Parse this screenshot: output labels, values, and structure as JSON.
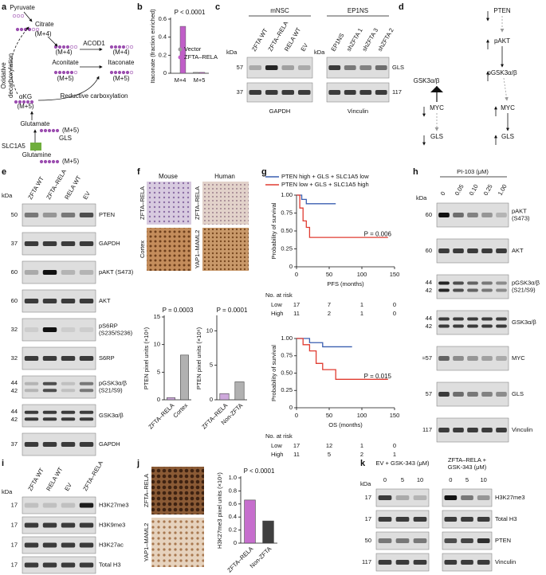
{
  "a": {
    "texts": [
      "a",
      "Pyruvate",
      "Citrate",
      "(M+4)",
      "ACOD1",
      "(M+4)",
      "(M+4)",
      "Aconitate",
      "Itaconate",
      "(M+5)",
      "(M+5)",
      "Oxidative",
      "decarboxylation",
      "αKG",
      "(M+5)",
      "Reductive carboxylation",
      "Glutamate",
      "(M+5)",
      "GLS",
      "SLC1A5",
      "Glutamine",
      "(M+5)"
    ]
  },
  "b": {
    "letter": "b",
    "chart_data": {
      "type": "bar",
      "y_label": "Itaconate (fraction enriched)",
      "annotation": "P < 0.0001",
      "categories": [
        "M+4",
        "M+5"
      ],
      "series": [
        {
          "name": "Vector",
          "color": "#9a9a9a",
          "values": [
            0,
            0.01
          ]
        },
        {
          "name": "ZFTA–RELA",
          "color": "#c05ec8",
          "values": [
            0.52,
            0.01
          ]
        }
      ],
      "ylim": [
        0,
        0.6
      ],
      "yticks": [
        0,
        0.2,
        0.4,
        0.6
      ]
    }
  },
  "c": {
    "letter": "c",
    "group_left": "mNSC",
    "group_right": "EP1NS",
    "lanes_left": [
      "ZFTA WT",
      "ZFTA–RELA",
      "RELA WT",
      "EV"
    ],
    "lanes_right": [
      "EP1NS",
      "shZFTA 1",
      "shZFTA 3",
      "shZFTA 2"
    ],
    "kda_title": "kDa",
    "kda_left": [
      "57",
      "37"
    ],
    "kda_title_right": "kDa",
    "kda_right": "117",
    "band": "GLS",
    "loading_left": "GAPDH",
    "loading_right": "Vinculin"
  },
  "d": {
    "letter": "d",
    "texts": [
      "PTEN",
      "pAKT",
      "pGSK3α/β",
      "GSK3α/β",
      "MYC",
      "GLS",
      "MYC",
      "GLS"
    ]
  },
  "e": {
    "letter": "e",
    "lanes": [
      "ZFTA WT",
      "ZFTA–RELA",
      "RELA WT",
      "EV"
    ],
    "kda_title": "kDa",
    "rows": [
      {
        "kda": [
          "50"
        ],
        "label": [
          "PTEN"
        ]
      },
      {
        "kda": [
          "37"
        ],
        "label": [
          "GAPDH"
        ]
      },
      {
        "kda": [
          "60"
        ],
        "label": [
          "pAKT (S473)"
        ]
      },
      {
        "kda": [
          "60"
        ],
        "label": [
          "AKT"
        ]
      },
      {
        "kda": [
          "32"
        ],
        "label": [
          "pS6RP",
          "(S235/S236)"
        ]
      },
      {
        "kda": [
          "32"
        ],
        "label": [
          "S6RP"
        ]
      },
      {
        "kda": [
          "44",
          "42"
        ],
        "label": [
          "pGSK3α/β",
          "(S21/S9)"
        ]
      },
      {
        "kda": [
          "44",
          "42"
        ],
        "label": [
          "GSK3α/β"
        ]
      },
      {
        "kda": [
          "37"
        ],
        "label": [
          "GAPDH"
        ]
      }
    ]
  },
  "f": {
    "letter": "f",
    "col_mouse": "Mouse",
    "col_human": "Human",
    "row_labels": [
      "ZFTA–RELA",
      "Cortex",
      "ZFTA–RELA",
      "YAP1–MAML2"
    ],
    "charts": [
      {
        "type": "bar",
        "y_label": "PTEN pixel units (×10⁶)",
        "annotation": "P = 0.0003",
        "categories": [
          "ZFTA–RELA",
          "Cortex"
        ],
        "colors": [
          "#c9a0d8",
          "#a8a8a8"
        ],
        "values": [
          0.4,
          8.1
        ],
        "ylim": [
          0,
          15
        ],
        "yticks": [
          0,
          5,
          10,
          15
        ]
      },
      {
        "type": "bar",
        "y_label": "PTEN pixel units (×10⁶)",
        "annotation": "P = 0.0001",
        "categories": [
          "ZFTA–RELA",
          "Non-ZFTA"
        ],
        "colors": [
          "#c9a0d8",
          "#a8a8a8"
        ],
        "values": [
          0.9,
          2.6
        ],
        "ylim": [
          0,
          12
        ],
        "yticks": [
          0,
          5,
          10
        ]
      }
    ]
  },
  "g": {
    "letter": "g",
    "legend": [
      {
        "name": "PTEN high + GLS + SLC1A5 low",
        "color": "#3a5fb0"
      },
      {
        "name": "PTEN low + GLS + SLC1A5 high",
        "color": "#e03c31"
      }
    ],
    "charts": [
      {
        "type": "line",
        "y_label": "Probability of survival",
        "x_label": "PFS (months)",
        "annotation": "P = 0.006",
        "xlim": [
          0,
          150
        ],
        "xticks": [
          0,
          50,
          100,
          150
        ],
        "ylim": [
          0,
          1
        ],
        "yticks": [
          0,
          0.25,
          {
            "value": 0.5,
            "label": "0.50"
          },
          0.75,
          {
            "value": 1,
            "label": "1.00"
          }
        ],
        "series": [
          {
            "x": [
              0,
              8,
              8,
              15,
              15,
              60
            ],
            "values": [
              1,
              1,
              0.94,
              0.94,
              0.88,
              0.88
            ]
          },
          {
            "x": [
              0,
              5,
              5,
              10,
              10,
              15,
              15,
              20,
              20,
              140
            ],
            "values": [
              1,
              1,
              0.82,
              0.82,
              0.64,
              0.64,
              0.55,
              0.55,
              0.41,
              0.41
            ]
          }
        ],
        "risk_title": "No. at risk",
        "risk_rows": [
          {
            "name": "Low",
            "values": [
              17,
              7,
              1,
              0
            ]
          },
          {
            "name": "High",
            "values": [
              11,
              2,
              1,
              0
            ]
          }
        ]
      },
      {
        "type": "line",
        "y_label": "Probability of survival",
        "x_label": "OS (months)",
        "annotation": "P = 0.015",
        "xlim": [
          0,
          150
        ],
        "xticks": [
          0,
          50,
          100,
          150
        ],
        "ylim": [
          0,
          1
        ],
        "yticks": [
          0,
          0.25,
          {
            "value": 0.5,
            "label": "0.50"
          },
          0.75,
          {
            "value": 1,
            "label": "1.00"
          }
        ],
        "series": [
          {
            "x": [
              0,
              20,
              20,
              40,
              40,
              85
            ],
            "values": [
              1,
              1,
              0.94,
              0.94,
              0.88,
              0.88
            ]
          },
          {
            "x": [
              0,
              10,
              10,
              20,
              20,
              30,
              30,
              40,
              40,
              60,
              60,
              140
            ],
            "values": [
              1,
              1,
              0.91,
              0.91,
              0.82,
              0.82,
              0.64,
              0.64,
              0.55,
              0.55,
              0.41,
              0.41
            ]
          }
        ],
        "risk_title": "No. at risk",
        "risk_rows": [
          {
            "name": "Low",
            "values": [
              17,
              12,
              1,
              0
            ]
          },
          {
            "name": "High",
            "values": [
              11,
              5,
              2,
              1
            ]
          }
        ]
      }
    ]
  },
  "h": {
    "letter": "h",
    "treatment": "PI-103 (μM)",
    "lanes": [
      "0",
      "0.05",
      "0.10",
      "0.25",
      "1.00"
    ],
    "kda_title": "kDa",
    "rows": [
      {
        "kda": [
          "60"
        ],
        "label": [
          "pAKT",
          "(S473)"
        ]
      },
      {
        "kda": [
          "60"
        ],
        "label": [
          "AKT"
        ]
      },
      {
        "kda": [
          "44",
          "42"
        ],
        "label": [
          "pGSK3α/β",
          "(S21/S9)"
        ]
      },
      {
        "kda": [
          "44",
          "42"
        ],
        "label": [
          "GSK3α/β"
        ]
      },
      {
        "kda": [
          "≈57"
        ],
        "label": [
          "MYC"
        ]
      },
      {
        "kda": [
          "57"
        ],
        "label": [
          "GLS"
        ]
      },
      {
        "kda": [
          "117"
        ],
        "label": [
          "Vinculin"
        ]
      }
    ]
  },
  "i": {
    "letter": "i",
    "lanes": [
      "ZFTA WT",
      "RELA WT",
      "EV",
      "ZFTA–RELA"
    ],
    "kda_title": "kDa",
    "rows": [
      {
        "kda": [
          "17"
        ],
        "label": [
          "H3K27me3"
        ]
      },
      {
        "kda": [
          "17"
        ],
        "label": [
          "H3K9me3"
        ]
      },
      {
        "kda": [
          "17"
        ],
        "label": [
          "H3K27ac"
        ]
      },
      {
        "kda": [
          "17"
        ],
        "label": [
          "Total H3"
        ]
      }
    ]
  },
  "j": {
    "letter": "j",
    "row_labels": [
      "ZFTA–RELA",
      "YAP1–MAML2"
    ],
    "chart": {
      "type": "bar",
      "y_label": "H3K27me3 pixel units (×10⁶)",
      "annotation": "P < 0.0001",
      "categories": [
        "ZFTA–RELA",
        "Non-ZFTA"
      ],
      "colors": [
        "#c05ec8",
        "#2b2b2b"
      ],
      "values": [
        0.66,
        0.34
      ],
      "ylim": [
        0,
        1
      ],
      "yticks": [
        0,
        0.2,
        0.4,
        0.6,
        0.8,
        {
          "value": 1,
          "label": "1.0"
        }
      ]
    }
  },
  "k": {
    "letter": "k",
    "groups": [
      {
        "title": [
          "EV + GSK-343 (μM)"
        ],
        "lanes": [
          "0",
          "5",
          "10"
        ]
      },
      {
        "title": [
          "ZFTA–RELA +",
          "GSK-343 (μM)"
        ],
        "lanes": [
          "0",
          "5",
          "10"
        ]
      }
    ],
    "kda_title": "kDa",
    "rows": [
      {
        "kda": [
          "17"
        ],
        "label": [
          "H3K27me3"
        ]
      },
      {
        "kda": [
          "17"
        ],
        "label": [
          "Total H3"
        ]
      },
      {
        "kda": [
          "50"
        ],
        "label": [
          "PTEN"
        ]
      },
      {
        "kda": [
          "117"
        ],
        "label": [
          "Vinculin"
        ]
      }
    ]
  }
}
